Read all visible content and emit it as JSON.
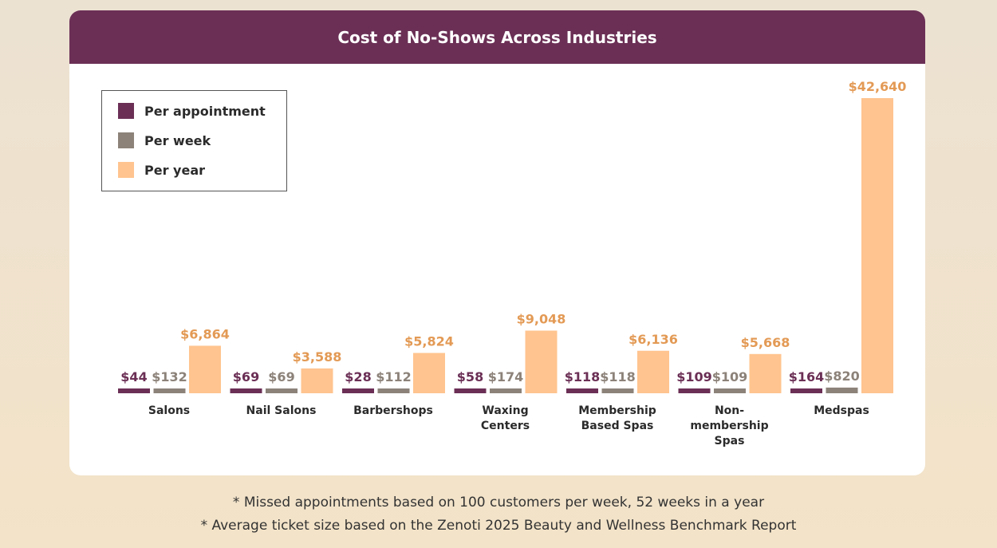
{
  "chart_data": {
    "type": "bar",
    "title": "Cost of No-Shows Across Industries",
    "categories": [
      "Salons",
      "Nail Salons",
      "Barbershops",
      "Waxing Centers",
      "Membership Based Spas",
      "Non-membership Spas",
      "Medspas"
    ],
    "series": [
      {
        "name": "Per appointment",
        "color": "#6b2f55",
        "values": [
          44,
          69,
          28,
          58,
          118,
          109,
          164
        ],
        "value_labels": [
          "$44",
          "$69",
          "$28",
          "$58",
          "$118",
          "$109",
          "$164"
        ]
      },
      {
        "name": "Per week",
        "color": "#8c8279",
        "values": [
          132,
          69,
          112,
          174,
          118,
          109,
          820
        ],
        "value_labels": [
          "$132",
          "$69",
          "$112",
          "$174",
          "$118",
          "$109",
          "$820"
        ]
      },
      {
        "name": "Per year",
        "color": "#ffc48f",
        "values": [
          6864,
          3588,
          5824,
          9048,
          6136,
          5668,
          42640
        ],
        "value_labels": [
          "$6,864",
          "$3,588",
          "$5,824",
          "$9,048",
          "$6,136",
          "$5,668",
          "$42,640"
        ]
      }
    ],
    "legend": "top-left"
  },
  "footnotes": [
    "* Missed appointments based on 100 customers per week, 52 weeks in a year",
    "* Average ticket size based on the Zenoti 2025 Beauty and Wellness Benchmark Report"
  ]
}
